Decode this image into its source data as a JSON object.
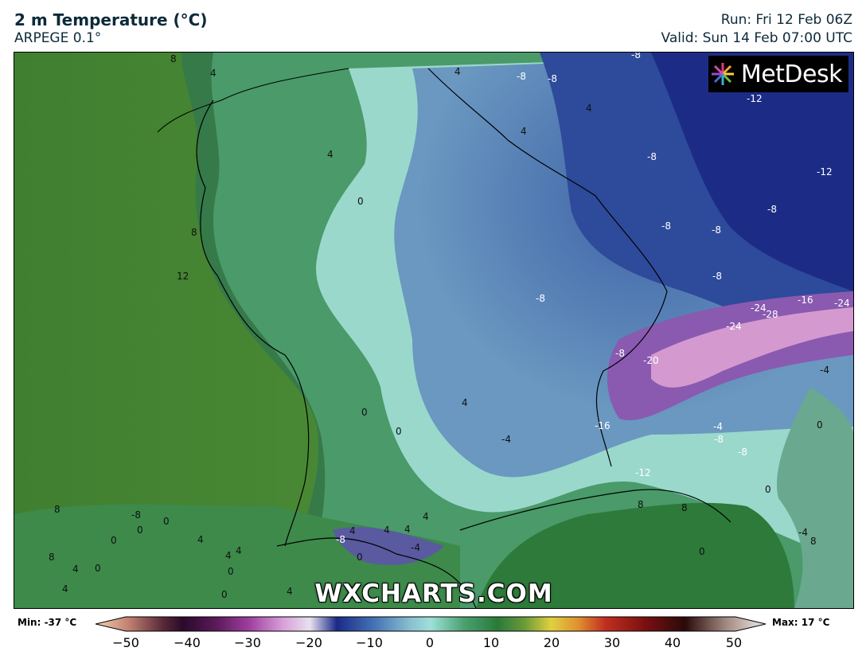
{
  "header": {
    "title": "2 m Temperature (°C)",
    "model": "ARPEGE 0.1°",
    "run": "Run: Fri 12 Feb 06Z",
    "valid": "Valid: Sun 14 Feb 07:00 UTC"
  },
  "logo": {
    "text": "MetDesk"
  },
  "watermark": "WXCHARTS.COM",
  "colorbar": {
    "min_label": "Min: -37 °C",
    "max_label": "Max: 17 °C",
    "range": [
      -50,
      50
    ],
    "ticks": [
      "−50",
      "−40",
      "−30",
      "−20",
      "−10",
      "0",
      "10",
      "20",
      "30",
      "40",
      "50"
    ]
  },
  "contour_labels": [
    "8",
    "4",
    "8",
    "4",
    "4",
    "4",
    "4",
    "-8",
    "-8",
    "-8",
    "-12",
    "-12",
    "0",
    "-8",
    "-8",
    "-8",
    "-8",
    "12",
    "-8",
    "-8",
    "-16",
    "-24",
    "-28",
    "-24",
    "-24",
    "-20",
    "-8",
    "-4",
    "0",
    "4",
    "0",
    "-4",
    "-16",
    "-4",
    "-8",
    "-8",
    "-12",
    "0",
    "0",
    "8",
    "-4",
    "8",
    "-8",
    "0",
    "0",
    "4",
    "4",
    "4",
    "4",
    "-8",
    "0",
    "8",
    "0",
    "4",
    "4",
    "4",
    "-4",
    "0",
    "0",
    "8",
    "0",
    "4",
    "4",
    "0",
    "8",
    "4"
  ],
  "colors": {
    "ocean_green": "#4a8a3a",
    "land_green": "#3e8a50",
    "cold_teal": "#9ee0d8",
    "cold_blue": "#4a78b8",
    "very_cold_navy": "#1a2a88",
    "alpine_pink": "#c890c8"
  }
}
